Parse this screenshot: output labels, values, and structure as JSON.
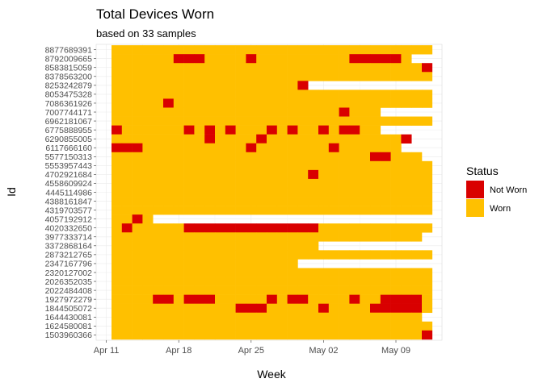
{
  "chart_data": {
    "type": "heatmap",
    "title": "Total Devices Worn",
    "subtitle": "based on 33 samples",
    "xlabel": "Week",
    "ylabel": "Id",
    "x_start": "2016-04-12",
    "num_days": 31,
    "x_ticks": [
      {
        "label": "Apr 11",
        "date": "2016-04-11"
      },
      {
        "label": "Apr 18",
        "date": "2016-04-18"
      },
      {
        "label": "Apr 25",
        "date": "2016-04-25"
      },
      {
        "label": "May 02",
        "date": "2016-05-02"
      },
      {
        "label": "May 09",
        "date": "2016-05-09"
      }
    ],
    "legend": {
      "title": "Status",
      "placement": "right",
      "items": [
        {
          "key": "Not Worn",
          "label": "Not Worn",
          "color": "#d90000"
        },
        {
          "key": "Worn",
          "label": "Worn",
          "color": "#ffc000"
        }
      ]
    },
    "grid": true,
    "rows": [
      {
        "id": "8877689391",
        "days": 31,
        "not_worn": []
      },
      {
        "id": "8792009665",
        "days": 29,
        "not_worn": [
          6,
          7,
          8,
          13,
          23,
          24,
          25,
          26,
          27
        ]
      },
      {
        "id": "8583815059",
        "days": 31,
        "not_worn": [
          30
        ]
      },
      {
        "id": "8378563200",
        "days": 31,
        "not_worn": []
      },
      {
        "id": "8253242879",
        "days": 19,
        "not_worn": [
          18
        ]
      },
      {
        "id": "8053475328",
        "days": 31,
        "not_worn": []
      },
      {
        "id": "7086361926",
        "days": 31,
        "not_worn": [
          5
        ]
      },
      {
        "id": "7007744171",
        "days": 26,
        "not_worn": [
          22
        ]
      },
      {
        "id": "6962181067",
        "days": 31,
        "not_worn": []
      },
      {
        "id": "6775888955",
        "days": 26,
        "not_worn": [
          0,
          7,
          9,
          11,
          15,
          17,
          20,
          22,
          23
        ]
      },
      {
        "id": "6290855005",
        "days": 29,
        "not_worn": [
          9,
          14,
          28
        ]
      },
      {
        "id": "6117666160",
        "days": 28,
        "not_worn": [
          0,
          1,
          2,
          13,
          21
        ]
      },
      {
        "id": "5577150313",
        "days": 30,
        "not_worn": [
          25,
          26
        ]
      },
      {
        "id": "5553957443",
        "days": 31,
        "not_worn": []
      },
      {
        "id": "4702921684",
        "days": 31,
        "not_worn": [
          19
        ]
      },
      {
        "id": "4558609924",
        "days": 31,
        "not_worn": []
      },
      {
        "id": "4445114986",
        "days": 31,
        "not_worn": []
      },
      {
        "id": "4388161847",
        "days": 31,
        "not_worn": []
      },
      {
        "id": "4319703577",
        "days": 31,
        "not_worn": []
      },
      {
        "id": "4057192912",
        "days": 4,
        "not_worn": [
          2
        ]
      },
      {
        "id": "4020332650",
        "days": 31,
        "not_worn": [
          1,
          7,
          8,
          9,
          10,
          11,
          12,
          13,
          14,
          15,
          16,
          17,
          18,
          19
        ]
      },
      {
        "id": "3977333714",
        "days": 30,
        "not_worn": []
      },
      {
        "id": "3372868164",
        "days": 20,
        "not_worn": []
      },
      {
        "id": "2873212765",
        "days": 31,
        "not_worn": []
      },
      {
        "id": "2347167796",
        "days": 18,
        "not_worn": []
      },
      {
        "id": "2320127002",
        "days": 31,
        "not_worn": []
      },
      {
        "id": "2026352035",
        "days": 31,
        "not_worn": []
      },
      {
        "id": "2022484408",
        "days": 31,
        "not_worn": []
      },
      {
        "id": "1927972279",
        "days": 31,
        "not_worn": [
          4,
          5,
          7,
          8,
          9,
          15,
          17,
          18,
          23,
          26,
          27,
          28,
          29
        ]
      },
      {
        "id": "1844505072",
        "days": 31,
        "not_worn": [
          12,
          13,
          14,
          20,
          25,
          26,
          27,
          28,
          29
        ]
      },
      {
        "id": "1644430081",
        "days": 30,
        "not_worn": []
      },
      {
        "id": "1624580081",
        "days": 31,
        "not_worn": []
      },
      {
        "id": "1503960366",
        "days": 31,
        "not_worn": [
          30
        ]
      }
    ]
  }
}
